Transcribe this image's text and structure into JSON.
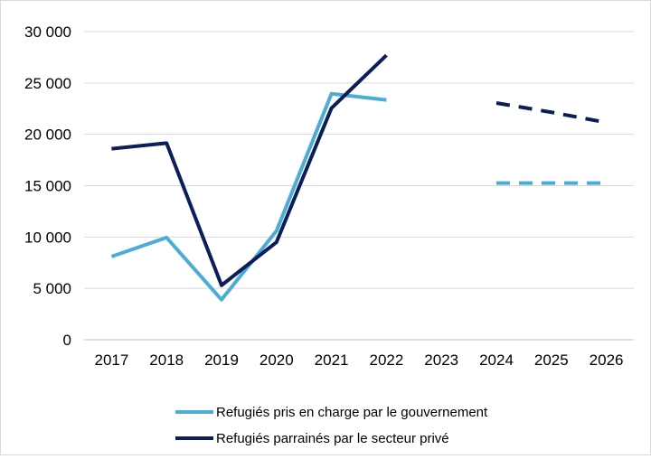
{
  "chart_data": {
    "type": "line",
    "title": "",
    "xlabel": "",
    "ylabel": "",
    "categories": [
      "2017",
      "2018",
      "2019",
      "2020",
      "2021",
      "2022",
      "2023",
      "2024",
      "2025",
      "2026"
    ],
    "ylim": [
      0,
      30000
    ],
    "yticks": [
      0,
      5000,
      10000,
      15000,
      20000,
      25000,
      30000
    ],
    "ytick_labels": [
      "0",
      "5 000",
      "10 000",
      "15 000",
      "20 000",
      "25 000",
      "30 000"
    ],
    "grid": "horizontal",
    "legend": "bottom",
    "series": [
      {
        "name": "Refugiés pris en charge par le gouvernement",
        "color": "#4bacd6",
        "values": [
          8100,
          9950,
          3900,
          10600,
          23950,
          23350,
          null,
          null,
          null,
          null
        ],
        "projection": [
          null,
          null,
          null,
          null,
          null,
          null,
          null,
          15250,
          15250,
          15250
        ]
      },
      {
        "name": "Refugiés parrainés par le secteur privé",
        "color": "#0b1d5a",
        "values": [
          18600,
          19150,
          5300,
          9500,
          22550,
          27700,
          null,
          null,
          null,
          null
        ],
        "projection": [
          null,
          null,
          null,
          null,
          null,
          null,
          null,
          23050,
          22150,
          21150
        ]
      }
    ]
  }
}
